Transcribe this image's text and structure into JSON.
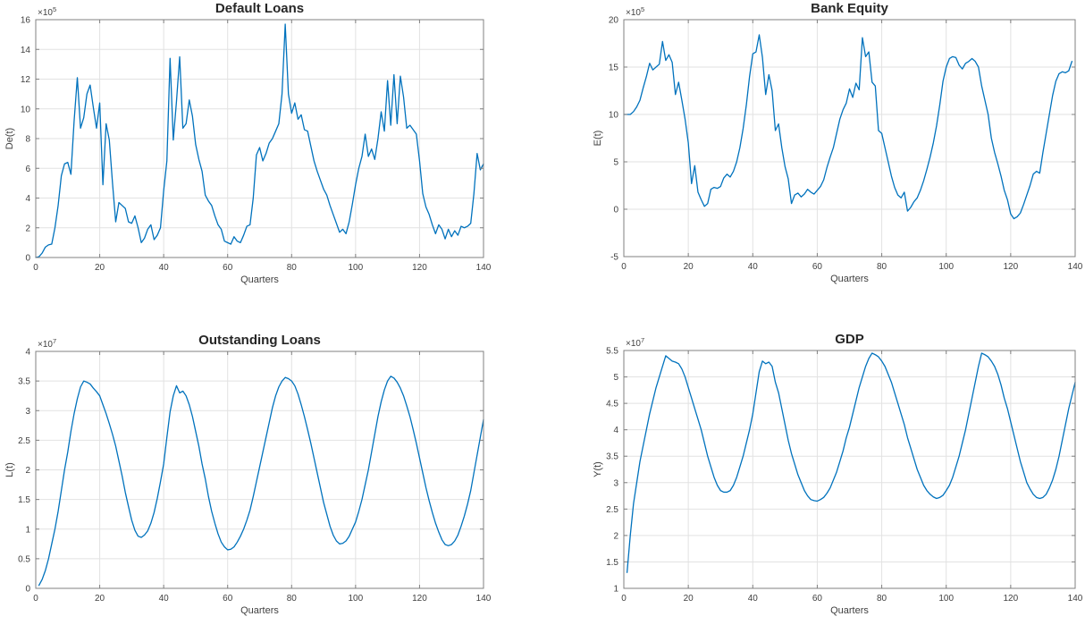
{
  "figure": {
    "background": "#ffffff",
    "text_color": "#404040",
    "title_color": "#262626",
    "grid_color": "#e2e2e2",
    "box_color": "#808080",
    "line_color": "#0072BD"
  },
  "chart_data": [
    {
      "id": "default-loans",
      "type": "line",
      "title": "Default Loans",
      "xlabel": "Quarters",
      "ylabel": "De(t)",
      "y_exponent": {
        "prefix": "×10",
        "exp": "5"
      },
      "xlim": [
        0,
        140
      ],
      "ylim": [
        0,
        16
      ],
      "xticks": [
        0,
        20,
        40,
        60,
        80,
        100,
        120,
        140
      ],
      "yticks": [
        0,
        2,
        4,
        6,
        8,
        10,
        12,
        14,
        16
      ],
      "grid": true,
      "legend": "none",
      "line_color": "#0072BD",
      "x0": 0,
      "dx": 1,
      "values": [
        0,
        0.05,
        0.3,
        0.7,
        0.85,
        0.9,
        2.0,
        3.5,
        5.5,
        6.3,
        6.4,
        5.6,
        9.2,
        12.1,
        8.7,
        9.4,
        11.0,
        11.6,
        10.1,
        8.7,
        10.4,
        4.9,
        9.0,
        7.9,
        5.0,
        2.4,
        3.7,
        3.5,
        3.3,
        2.4,
        2.3,
        2.8,
        2.0,
        1.0,
        1.3,
        1.9,
        2.2,
        1.2,
        1.5,
        2.0,
        4.5,
        6.5,
        13.4,
        7.9,
        10.5,
        13.5,
        8.7,
        9.0,
        10.6,
        9.5,
        7.6,
        6.6,
        5.8,
        4.2,
        3.8,
        3.5,
        2.8,
        2.2,
        1.9,
        1.1,
        1.0,
        0.9,
        1.4,
        1.1,
        1.0,
        1.5,
        2.1,
        2.2,
        4.0,
        6.9,
        7.4,
        6.5,
        7.0,
        7.7,
        8.0,
        8.5,
        9.0,
        11.0,
        15.7,
        11.0,
        9.7,
        10.4,
        9.3,
        9.6,
        8.6,
        8.5,
        7.5,
        6.5,
        5.8,
        5.2,
        4.6,
        4.2,
        3.5,
        2.9,
        2.3,
        1.7,
        1.9,
        1.6,
        2.4,
        3.6,
        4.9,
        6.0,
        6.8,
        8.3,
        6.8,
        7.3,
        6.6,
        8.0,
        9.8,
        8.5,
        11.9,
        8.9,
        12.3,
        9.0,
        12.2,
        10.8,
        8.7,
        8.9,
        8.6,
        8.3,
        6.5,
        4.3,
        3.4,
        2.9,
        2.2,
        1.6,
        2.2,
        1.9,
        1.25,
        1.9,
        1.4,
        1.8,
        1.5,
        2.1,
        2.0,
        2.1,
        2.3,
        4.3,
        7.0,
        5.9,
        6.3
      ]
    },
    {
      "id": "bank-equity",
      "type": "line",
      "title": "Bank Equity",
      "xlabel": "Quarters",
      "ylabel": "E(t)",
      "y_exponent": {
        "prefix": "×10",
        "exp": "5"
      },
      "xlim": [
        0,
        140
      ],
      "ylim": [
        -5,
        20
      ],
      "xticks": [
        0,
        20,
        40,
        60,
        80,
        100,
        120,
        140
      ],
      "yticks": [
        -5,
        0,
        5,
        10,
        15,
        20
      ],
      "grid": true,
      "legend": "none",
      "line_color": "#0072BD",
      "x0": 0,
      "dx": 1,
      "values": [
        10.0,
        10.0,
        10.0,
        10.3,
        10.8,
        11.5,
        12.8,
        14.0,
        15.4,
        14.7,
        15.0,
        15.3,
        17.7,
        15.7,
        16.3,
        15.5,
        12.1,
        13.4,
        11.5,
        9.5,
        7.0,
        2.7,
        4.6,
        1.8,
        1.0,
        0.3,
        0.6,
        2.1,
        2.3,
        2.2,
        2.4,
        3.3,
        3.7,
        3.4,
        4.0,
        5.0,
        6.5,
        8.5,
        11.0,
        14.0,
        16.4,
        16.6,
        18.4,
        16.0,
        12.1,
        14.2,
        12.5,
        8.3,
        9.0,
        6.5,
        4.5,
        3.2,
        0.6,
        1.5,
        1.7,
        1.3,
        1.6,
        2.1,
        1.8,
        1.6,
        2.0,
        2.4,
        3.1,
        4.4,
        5.5,
        6.5,
        8.0,
        9.5,
        10.5,
        11.2,
        12.7,
        11.8,
        13.3,
        12.6,
        18.1,
        16.1,
        16.6,
        13.4,
        13.0,
        8.3,
        8.0,
        6.5,
        5.0,
        3.5,
        2.3,
        1.5,
        1.2,
        1.8,
        -0.2,
        0.2,
        0.8,
        1.2,
        2.0,
        3.0,
        4.2,
        5.5,
        7.0,
        8.8,
        11.0,
        13.5,
        15.0,
        15.9,
        16.1,
        16.0,
        15.2,
        14.8,
        15.4,
        15.6,
        15.9,
        15.6,
        15.0,
        13.0,
        11.5,
        10.0,
        7.5,
        6.0,
        4.8,
        3.5,
        2.0,
        1.0,
        -0.5,
        -1.0,
        -0.8,
        -0.4,
        0.5,
        1.5,
        2.5,
        3.7,
        4.0,
        3.8,
        6.0,
        8.0,
        10.0,
        12.0,
        13.5,
        14.3,
        14.5,
        14.4,
        14.6,
        15.6
      ]
    },
    {
      "id": "outstanding-loans",
      "type": "line",
      "title": "Outstanding Loans",
      "xlabel": "Quarters",
      "ylabel": "L(t)",
      "y_exponent": {
        "prefix": "×10",
        "exp": "7"
      },
      "xlim": [
        0,
        140
      ],
      "ylim": [
        0,
        4
      ],
      "xticks": [
        0,
        20,
        40,
        60,
        80,
        100,
        120,
        140
      ],
      "yticks": [
        0,
        0.5,
        1,
        1.5,
        2,
        2.5,
        3,
        3.5,
        4
      ],
      "grid": true,
      "legend": "none",
      "line_color": "#0072BD",
      "x0": 1,
      "dx": 1,
      "values": [
        0.05,
        0.15,
        0.3,
        0.5,
        0.75,
        1.0,
        1.3,
        1.65,
        2.0,
        2.3,
        2.65,
        2.95,
        3.2,
        3.4,
        3.5,
        3.48,
        3.45,
        3.38,
        3.32,
        3.25,
        3.1,
        2.95,
        2.78,
        2.6,
        2.4,
        2.15,
        1.9,
        1.62,
        1.38,
        1.15,
        0.98,
        0.88,
        0.86,
        0.9,
        0.97,
        1.1,
        1.28,
        1.52,
        1.8,
        2.1,
        2.55,
        2.98,
        3.25,
        3.42,
        3.3,
        3.33,
        3.25,
        3.1,
        2.9,
        2.65,
        2.4,
        2.1,
        1.85,
        1.55,
        1.3,
        1.1,
        0.92,
        0.78,
        0.7,
        0.65,
        0.66,
        0.7,
        0.78,
        0.88,
        1.0,
        1.15,
        1.32,
        1.55,
        1.8,
        2.05,
        2.3,
        2.55,
        2.8,
        3.05,
        3.25,
        3.4,
        3.5,
        3.56,
        3.54,
        3.5,
        3.42,
        3.28,
        3.1,
        2.9,
        2.68,
        2.45,
        2.2,
        1.95,
        1.7,
        1.45,
        1.25,
        1.05,
        0.9,
        0.8,
        0.75,
        0.76,
        0.8,
        0.88,
        1.0,
        1.12,
        1.3,
        1.5,
        1.75,
        2.0,
        2.3,
        2.6,
        2.9,
        3.15,
        3.35,
        3.5,
        3.58,
        3.55,
        3.48,
        3.38,
        3.25,
        3.08,
        2.9,
        2.68,
        2.45,
        2.2,
        1.95,
        1.7,
        1.48,
        1.28,
        1.1,
        0.95,
        0.82,
        0.74,
        0.72,
        0.74,
        0.8,
        0.9,
        1.05,
        1.22,
        1.42,
        1.65,
        1.95,
        2.25,
        2.55,
        2.85
      ]
    },
    {
      "id": "gdp",
      "type": "line",
      "title": "GDP",
      "xlabel": "Quarters",
      "ylabel": "Y(t)",
      "y_exponent": {
        "prefix": "×10",
        "exp": "7"
      },
      "xlim": [
        0,
        140
      ],
      "ylim": [
        1,
        5.5
      ],
      "xticks": [
        0,
        20,
        40,
        60,
        80,
        100,
        120,
        140
      ],
      "yticks": [
        1,
        1.5,
        2,
        2.5,
        3,
        3.5,
        4,
        4.5,
        5,
        5.5
      ],
      "grid": true,
      "legend": "none",
      "line_color": "#0072BD",
      "x0": 1,
      "dx": 1,
      "values": [
        1.3,
        2.0,
        2.6,
        3.0,
        3.4,
        3.7,
        4.0,
        4.3,
        4.55,
        4.8,
        5.0,
        5.2,
        5.4,
        5.35,
        5.3,
        5.28,
        5.25,
        5.15,
        5.0,
        4.8,
        4.6,
        4.4,
        4.2,
        4.0,
        3.75,
        3.5,
        3.3,
        3.1,
        2.95,
        2.85,
        2.82,
        2.82,
        2.85,
        2.95,
        3.1,
        3.3,
        3.5,
        3.75,
        4.0,
        4.3,
        4.7,
        5.1,
        5.3,
        5.25,
        5.28,
        5.2,
        4.9,
        4.7,
        4.4,
        4.1,
        3.8,
        3.55,
        3.35,
        3.15,
        3.0,
        2.85,
        2.75,
        2.68,
        2.66,
        2.65,
        2.68,
        2.72,
        2.8,
        2.9,
        3.05,
        3.2,
        3.4,
        3.6,
        3.85,
        4.05,
        4.3,
        4.55,
        4.8,
        5.0,
        5.2,
        5.35,
        5.45,
        5.42,
        5.38,
        5.3,
        5.2,
        5.05,
        4.9,
        4.7,
        4.5,
        4.3,
        4.1,
        3.85,
        3.65,
        3.45,
        3.25,
        3.1,
        2.95,
        2.85,
        2.78,
        2.73,
        2.7,
        2.72,
        2.76,
        2.85,
        2.95,
        3.1,
        3.3,
        3.5,
        3.75,
        4.0,
        4.3,
        4.6,
        4.9,
        5.2,
        5.45,
        5.42,
        5.38,
        5.3,
        5.2,
        5.05,
        4.85,
        4.6,
        4.4,
        4.15,
        3.9,
        3.65,
        3.4,
        3.2,
        3.0,
        2.88,
        2.78,
        2.72,
        2.7,
        2.72,
        2.78,
        2.9,
        3.05,
        3.25,
        3.5,
        3.8,
        4.1,
        4.4,
        4.65,
        4.9
      ]
    }
  ]
}
